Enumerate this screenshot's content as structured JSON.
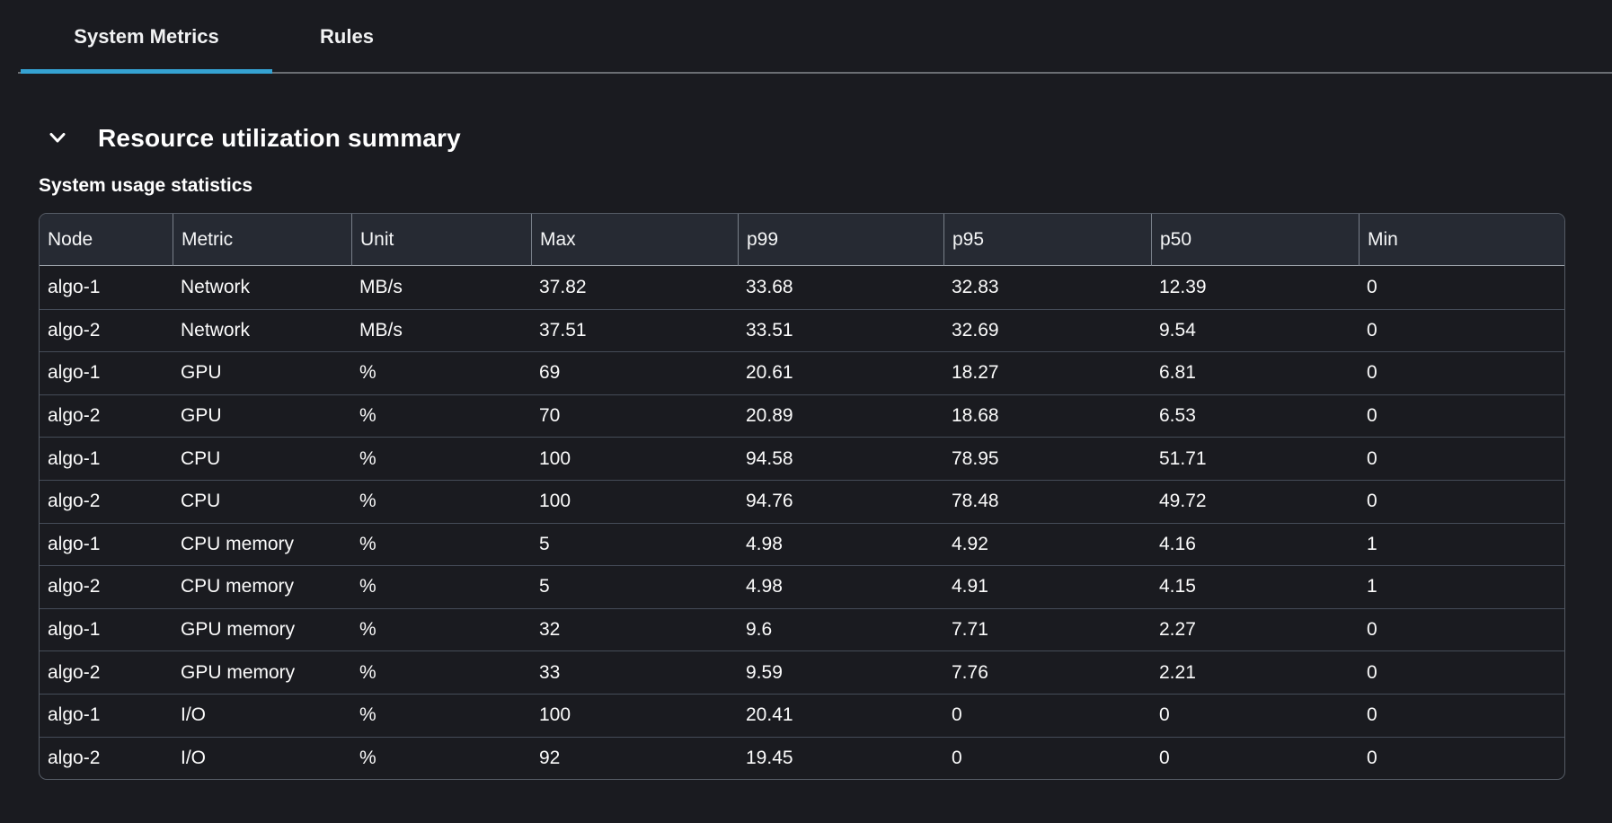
{
  "tabs": [
    {
      "label": "System Metrics",
      "active": true
    },
    {
      "label": "Rules",
      "active": false
    }
  ],
  "section": {
    "title": "Resource utilization summary",
    "collapsed": false
  },
  "table": {
    "caption": "System usage statistics",
    "columns": [
      "Node",
      "Metric",
      "Unit",
      "Max",
      "p99",
      "p95",
      "p50",
      "Min"
    ],
    "rows": [
      [
        "algo-1",
        "Network",
        "MB/s",
        "37.82",
        "33.68",
        "32.83",
        "12.39",
        "0"
      ],
      [
        "algo-2",
        "Network",
        "MB/s",
        "37.51",
        "33.51",
        "32.69",
        "9.54",
        "0"
      ],
      [
        "algo-1",
        "GPU",
        "%",
        "69",
        "20.61",
        "18.27",
        "6.81",
        "0"
      ],
      [
        "algo-2",
        "GPU",
        "%",
        "70",
        "20.89",
        "18.68",
        "6.53",
        "0"
      ],
      [
        "algo-1",
        "CPU",
        "%",
        "100",
        "94.58",
        "78.95",
        "51.71",
        "0"
      ],
      [
        "algo-2",
        "CPU",
        "%",
        "100",
        "94.76",
        "78.48",
        "49.72",
        "0"
      ],
      [
        "algo-1",
        "CPU memory",
        "%",
        "5",
        "4.98",
        "4.92",
        "4.16",
        "1"
      ],
      [
        "algo-2",
        "CPU memory",
        "%",
        "5",
        "4.98",
        "4.91",
        "4.15",
        "1"
      ],
      [
        "algo-1",
        "GPU memory",
        "%",
        "32",
        "9.6",
        "7.71",
        "2.27",
        "0"
      ],
      [
        "algo-2",
        "GPU memory",
        "%",
        "33",
        "9.59",
        "7.76",
        "2.21",
        "0"
      ],
      [
        "algo-1",
        "I/O",
        "%",
        "100",
        "20.41",
        "0",
        "0",
        "0"
      ],
      [
        "algo-2",
        "I/O",
        "%",
        "92",
        "19.45",
        "0",
        "0",
        "0"
      ]
    ]
  },
  "chart_data": {
    "type": "table",
    "title": "System usage statistics",
    "columns": [
      "Node",
      "Metric",
      "Unit",
      "Max",
      "p99",
      "p95",
      "p50",
      "Min"
    ],
    "rows": [
      [
        "algo-1",
        "Network",
        "MB/s",
        37.82,
        33.68,
        32.83,
        12.39,
        0
      ],
      [
        "algo-2",
        "Network",
        "MB/s",
        37.51,
        33.51,
        32.69,
        9.54,
        0
      ],
      [
        "algo-1",
        "GPU",
        "%",
        69,
        20.61,
        18.27,
        6.81,
        0
      ],
      [
        "algo-2",
        "GPU",
        "%",
        70,
        20.89,
        18.68,
        6.53,
        0
      ],
      [
        "algo-1",
        "CPU",
        "%",
        100,
        94.58,
        78.95,
        51.71,
        0
      ],
      [
        "algo-2",
        "CPU",
        "%",
        100,
        94.76,
        78.48,
        49.72,
        0
      ],
      [
        "algo-1",
        "CPU memory",
        "%",
        5,
        4.98,
        4.92,
        4.16,
        1
      ],
      [
        "algo-2",
        "CPU memory",
        "%",
        5,
        4.98,
        4.91,
        4.15,
        1
      ],
      [
        "algo-1",
        "GPU memory",
        "%",
        32,
        9.6,
        7.71,
        2.27,
        0
      ],
      [
        "algo-2",
        "GPU memory",
        "%",
        33,
        9.59,
        7.76,
        2.21,
        0
      ],
      [
        "algo-1",
        "I/O",
        "%",
        100,
        20.41,
        0,
        0,
        0
      ],
      [
        "algo-2",
        "I/O",
        "%",
        92,
        19.45,
        0,
        0,
        0
      ]
    ]
  },
  "colors": {
    "accent_tab_underline": "#35a2d2",
    "page_background": "#1a1b20",
    "table_header_background": "#262a33",
    "tab_divider": "#6b6e73"
  }
}
